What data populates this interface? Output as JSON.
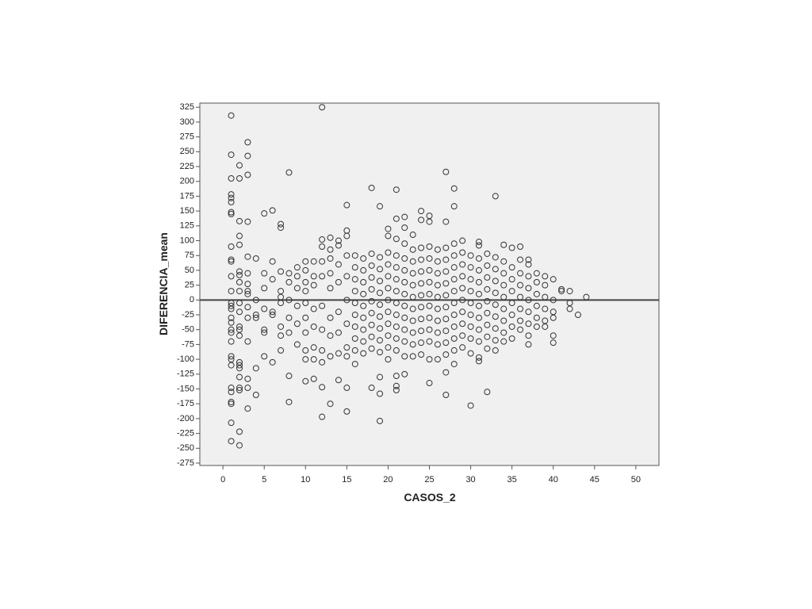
{
  "chart_data": {
    "type": "scatter",
    "x_label": "CASOS_2",
    "y_label": "DIFERENCIA_mean",
    "xlim": [
      -2.8,
      52.8
    ],
    "ylim": [
      -279,
      332
    ],
    "xticks": [
      0,
      5,
      10,
      15,
      20,
      25,
      30,
      35,
      40,
      45,
      50
    ],
    "yticks": [
      -275,
      -250,
      -225,
      -200,
      -175,
      -150,
      -125,
      -100,
      -75,
      -50,
      -25,
      0,
      25,
      50,
      75,
      100,
      125,
      150,
      175,
      200,
      225,
      250,
      275,
      300,
      325
    ],
    "reference_line": 0,
    "color": "#333333",
    "x": [
      1,
      1,
      1,
      1,
      1,
      1,
      1,
      1,
      1,
      1,
      1,
      1,
      1,
      1,
      1,
      1,
      1,
      1,
      1,
      1,
      1,
      1,
      1,
      1,
      1,
      1,
      1,
      1,
      1,
      1,
      2,
      2,
      2,
      2,
      2,
      2,
      2,
      2,
      2,
      2,
      2,
      2,
      2,
      2,
      2,
      2,
      2,
      2,
      2,
      2,
      2,
      2,
      3,
      3,
      3,
      3,
      3,
      3,
      3,
      3,
      3,
      3,
      3,
      3,
      3,
      3,
      3,
      4,
      4,
      4,
      4,
      4,
      4,
      5,
      5,
      5,
      5,
      5,
      5,
      5,
      6,
      6,
      6,
      6,
      6,
      6,
      7,
      7,
      7,
      7,
      7,
      7,
      7,
      7,
      7,
      8,
      8,
      8,
      8,
      8,
      8,
      8,
      8,
      9,
      9,
      9,
      9,
      9,
      9,
      10,
      10,
      10,
      10,
      10,
      10,
      10,
      10,
      10,
      10,
      11,
      11,
      11,
      11,
      11,
      11,
      11,
      11,
      12,
      12,
      12,
      12,
      12,
      12,
      12,
      12,
      12,
      12,
      12,
      13,
      13,
      13,
      13,
      13,
      13,
      13,
      13,
      13,
      14,
      14,
      14,
      14,
      14,
      14,
      14,
      14,
      15,
      15,
      15,
      15,
      15,
      15,
      15,
      15,
      15,
      15,
      15,
      16,
      16,
      16,
      16,
      16,
      16,
      16,
      16,
      16,
      16,
      17,
      17,
      17,
      17,
      17,
      17,
      17,
      17,
      17,
      18,
      18,
      18,
      18,
      18,
      18,
      18,
      18,
      18,
      18,
      18,
      19,
      19,
      19,
      19,
      19,
      19,
      19,
      19,
      19,
      19,
      19,
      19,
      19,
      20,
      20,
      20,
      20,
      20,
      20,
      20,
      20,
      20,
      20,
      20,
      20,
      21,
      21,
      21,
      21,
      21,
      21,
      21,
      21,
      21,
      21,
      21,
      21,
      21,
      21,
      21,
      22,
      22,
      22,
      22,
      22,
      22,
      22,
      22,
      22,
      22,
      22,
      22,
      22,
      23,
      23,
      23,
      23,
      23,
      23,
      23,
      23,
      23,
      23,
      23,
      24,
      24,
      24,
      24,
      24,
      24,
      24,
      24,
      24,
      24,
      24,
      24,
      25,
      25,
      25,
      25,
      25,
      25,
      25,
      25,
      25,
      25,
      25,
      25,
      25,
      26,
      26,
      26,
      26,
      26,
      26,
      26,
      26,
      26,
      26,
      27,
      27,
      27,
      27,
      27,
      27,
      27,
      27,
      27,
      27,
      27,
      27,
      27,
      27,
      28,
      28,
      28,
      28,
      28,
      28,
      28,
      28,
      28,
      28,
      28,
      28,
      28,
      29,
      29,
      29,
      29,
      29,
      29,
      29,
      29,
      29,
      29,
      30,
      30,
      30,
      30,
      30,
      30,
      30,
      30,
      30,
      30,
      31,
      31,
      31,
      31,
      31,
      31,
      31,
      31,
      31,
      31,
      31,
      31,
      32,
      32,
      32,
      32,
      32,
      32,
      32,
      32,
      32,
      32,
      33,
      33,
      33,
      33,
      33,
      33,
      33,
      33,
      33,
      33,
      34,
      34,
      34,
      34,
      34,
      34,
      34,
      34,
      34,
      35,
      35,
      35,
      35,
      35,
      35,
      35,
      35,
      36,
      36,
      36,
      36,
      36,
      36,
      36,
      36,
      37,
      37,
      37,
      37,
      37,
      37,
      37,
      37,
      37,
      38,
      38,
      38,
      38,
      38,
      38,
      39,
      39,
      39,
      39,
      39,
      39,
      40,
      40,
      40,
      40,
      40,
      40,
      41,
      41,
      42,
      42,
      42,
      43,
      44
    ],
    "values": [
      311,
      245,
      205,
      178,
      172,
      165,
      148,
      145,
      90,
      68,
      65,
      40,
      15,
      -5,
      -10,
      -15,
      -30,
      -38,
      -50,
      -55,
      -70,
      -95,
      -100,
      -110,
      -148,
      -155,
      -172,
      -175,
      -207,
      -238,
      227,
      205,
      133,
      108,
      93,
      48,
      42,
      30,
      15,
      -5,
      -20,
      -45,
      -50,
      -60,
      -105,
      -110,
      -115,
      -130,
      -148,
      -152,
      -222,
      -245,
      266,
      243,
      211,
      132,
      73,
      45,
      27,
      15,
      10,
      -12,
      -30,
      -70,
      -133,
      -148,
      -183,
      70,
      0,
      -25,
      -30,
      -115,
      -160,
      146,
      45,
      20,
      -15,
      -50,
      -55,
      -95,
      151,
      65,
      35,
      -20,
      -25,
      -105,
      128,
      122,
      48,
      15,
      5,
      -5,
      -45,
      -60,
      -85,
      215,
      45,
      30,
      0,
      -30,
      -55,
      -128,
      -172,
      55,
      40,
      20,
      -10,
      -40,
      -75,
      65,
      50,
      30,
      15,
      -5,
      -30,
      -55,
      -85,
      -100,
      -137,
      65,
      40,
      25,
      -15,
      -45,
      -80,
      -100,
      -133,
      325,
      102,
      90,
      65,
      40,
      -10,
      -50,
      -85,
      -105,
      -147,
      -197,
      105,
      85,
      70,
      45,
      20,
      -30,
      -60,
      -95,
      -175,
      100,
      92,
      60,
      30,
      -20,
      -55,
      -90,
      -135,
      160,
      117,
      108,
      75,
      40,
      0,
      -40,
      -80,
      -95,
      -148,
      -188,
      75,
      55,
      35,
      15,
      -5,
      -25,
      -45,
      -65,
      -85,
      -108,
      70,
      50,
      30,
      10,
      -10,
      -30,
      -50,
      -70,
      -90,
      189,
      78,
      58,
      38,
      18,
      -2,
      -22,
      -42,
      -62,
      -82,
      -148,
      158,
      72,
      52,
      32,
      12,
      -8,
      -28,
      -48,
      -68,
      -88,
      -130,
      -158,
      -204,
      120,
      108,
      80,
      60,
      40,
      20,
      0,
      -20,
      -40,
      -60,
      -80,
      -100,
      186,
      137,
      103,
      75,
      55,
      35,
      15,
      -5,
      -25,
      -45,
      -65,
      -85,
      -128,
      -145,
      -152,
      140,
      122,
      95,
      70,
      50,
      30,
      10,
      -10,
      -30,
      -50,
      -70,
      -95,
      -125,
      110,
      85,
      65,
      45,
      25,
      5,
      -15,
      -35,
      -55,
      -75,
      -95,
      150,
      135,
      88,
      68,
      48,
      28,
      8,
      -12,
      -32,
      -52,
      -72,
      -92,
      142,
      132,
      90,
      70,
      50,
      30,
      10,
      -10,
      -30,
      -50,
      -70,
      -100,
      -140,
      85,
      65,
      45,
      25,
      5,
      -15,
      -35,
      -55,
      -75,
      -100,
      216,
      132,
      88,
      68,
      48,
      28,
      8,
      -12,
      -32,
      -52,
      -72,
      -92,
      -122,
      -160,
      188,
      158,
      95,
      75,
      55,
      35,
      15,
      -5,
      -25,
      -45,
      -65,
      -85,
      -108,
      100,
      80,
      60,
      40,
      20,
      0,
      -20,
      -40,
      -60,
      -80,
      75,
      55,
      35,
      15,
      -5,
      -25,
      -45,
      -65,
      -90,
      -178,
      98,
      92,
      70,
      50,
      30,
      10,
      -10,
      -30,
      -50,
      -70,
      -97,
      -103,
      78,
      58,
      38,
      18,
      -2,
      -22,
      -42,
      -62,
      -82,
      -155,
      175,
      72,
      52,
      32,
      12,
      -8,
      -28,
      -48,
      -68,
      -85,
      93,
      65,
      45,
      25,
      5,
      -15,
      -35,
      -55,
      -70,
      88,
      55,
      35,
      15,
      -5,
      -25,
      -45,
      -65,
      90,
      68,
      45,
      25,
      5,
      -15,
      -35,
      -50,
      68,
      60,
      40,
      20,
      0,
      -20,
      -40,
      -60,
      -75,
      45,
      30,
      10,
      -10,
      -30,
      -45,
      40,
      25,
      5,
      -15,
      -35,
      -45,
      35,
      0,
      -20,
      -30,
      -60,
      -72,
      18,
      15,
      15,
      -5,
      -15,
      -25,
      5
    ]
  }
}
